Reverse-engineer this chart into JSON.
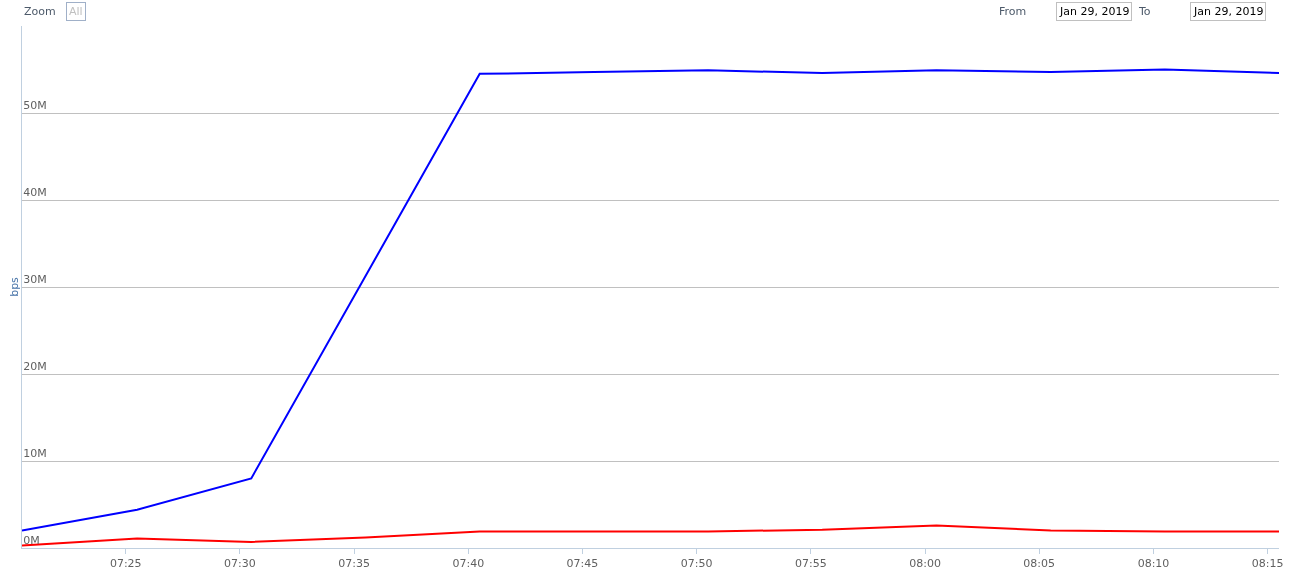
{
  "chart_data": {
    "type": "line",
    "ylabel": "bps",
    "annotations": [
      "Zoom",
      "All",
      "From",
      "Jan 29, 2019",
      "To",
      "Jan 29, 2019"
    ],
    "x": [
      7.341,
      7.425,
      7.5083,
      7.5917,
      7.675,
      7.7583,
      7.8417,
      7.925,
      8.0083,
      8.0917,
      8.175,
      8.2583
    ],
    "series": [
      {
        "color": "#0000ff",
        "values": [
          2.0,
          4.4,
          8.0,
          null,
          54.5,
          54.7,
          54.9,
          54.6,
          54.9,
          54.7,
          55.0,
          54.6
        ]
      },
      {
        "color": "#ff0000",
        "values": [
          0.3,
          1.1,
          0.7,
          1.2,
          1.9,
          1.9,
          1.9,
          2.1,
          2.6,
          2.0,
          1.9,
          1.9
        ]
      }
    ],
    "xlim": [
      7.341,
      8.2583
    ],
    "xticks": [
      {
        "value": 7.4167,
        "label": "07:25"
      },
      {
        "value": 7.5,
        "label": "07:30"
      },
      {
        "value": 7.5833,
        "label": "07:35"
      },
      {
        "value": 7.6667,
        "label": "07:40"
      },
      {
        "value": 7.75,
        "label": "07:45"
      },
      {
        "value": 7.8333,
        "label": "07:50"
      },
      {
        "value": 7.9167,
        "label": "07:55"
      },
      {
        "value": 8.0,
        "label": "08:00"
      },
      {
        "value": 8.0833,
        "label": "08:05"
      },
      {
        "value": 8.1667,
        "label": "08:10"
      },
      {
        "value": 8.25,
        "label": "08:15"
      }
    ],
    "ylim": [
      0,
      60
    ],
    "yticks": [
      {
        "value": 0,
        "label": "0M"
      },
      {
        "value": 10,
        "label": "10M"
      },
      {
        "value": 20,
        "label": "20M"
      },
      {
        "value": 30,
        "label": "30M"
      },
      {
        "value": 40,
        "label": "40M"
      },
      {
        "value": 50,
        "label": "50M"
      }
    ],
    "grid": "y",
    "marker": "none",
    "line_style": "solid"
  }
}
